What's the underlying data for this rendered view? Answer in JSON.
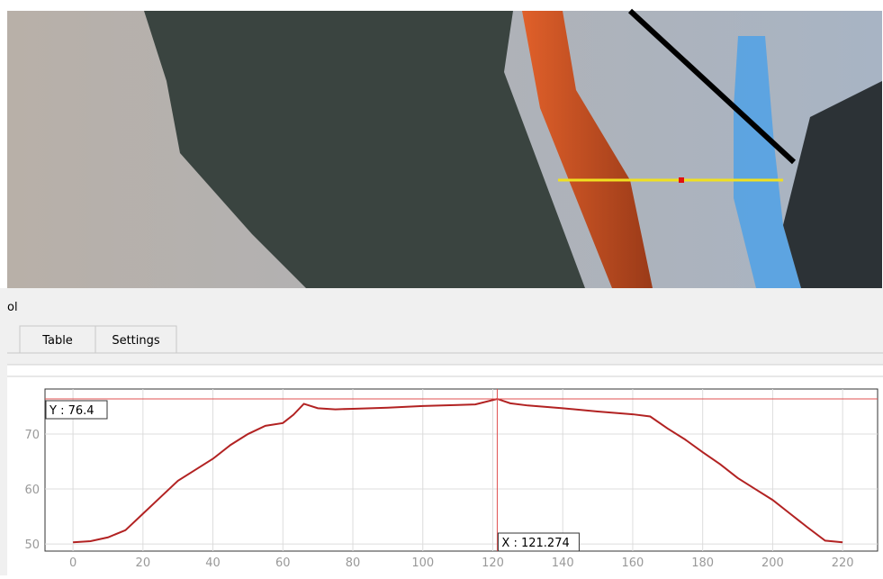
{
  "panel": {
    "title": "ol",
    "tabs": [
      "Table",
      "Settings"
    ]
  },
  "chart_data": {
    "type": "line",
    "x": [
      0,
      5,
      10,
      15,
      20,
      25,
      30,
      35,
      40,
      45,
      50,
      55,
      60,
      63,
      66,
      70,
      75,
      80,
      90,
      100,
      110,
      115,
      121.274,
      125,
      130,
      140,
      150,
      160,
      165,
      170,
      175,
      180,
      185,
      190,
      195,
      200,
      205,
      210,
      215,
      220
    ],
    "series": [
      {
        "color": "#b22222",
        "values": [
          50.3,
          50.5,
          51.2,
          52.5,
          55.5,
          58.5,
          61.5,
          63.5,
          65.5,
          68,
          70,
          71.5,
          72,
          73.5,
          75.5,
          74.7,
          74.5,
          74.6,
          74.8,
          75.1,
          75.3,
          75.4,
          76.4,
          75.6,
          75.2,
          74.7,
          74.1,
          73.6,
          73.2,
          71,
          69,
          66.7,
          64.5,
          62,
          60,
          58,
          55.5,
          53,
          50.6,
          50.3
        ]
      }
    ],
    "xlim": [
      -8,
      230
    ],
    "ylim": [
      48.7,
      78.2
    ],
    "xticks": [
      0,
      20,
      40,
      60,
      80,
      100,
      120,
      140,
      160,
      180,
      200,
      220
    ],
    "yticks": [
      50,
      60,
      70
    ],
    "grid": true,
    "crosshair": {
      "x": 121.274,
      "y": 76.4,
      "x_label": "X : 121.274",
      "y_label": "Y : 76.4",
      "color": "#e05050"
    }
  }
}
